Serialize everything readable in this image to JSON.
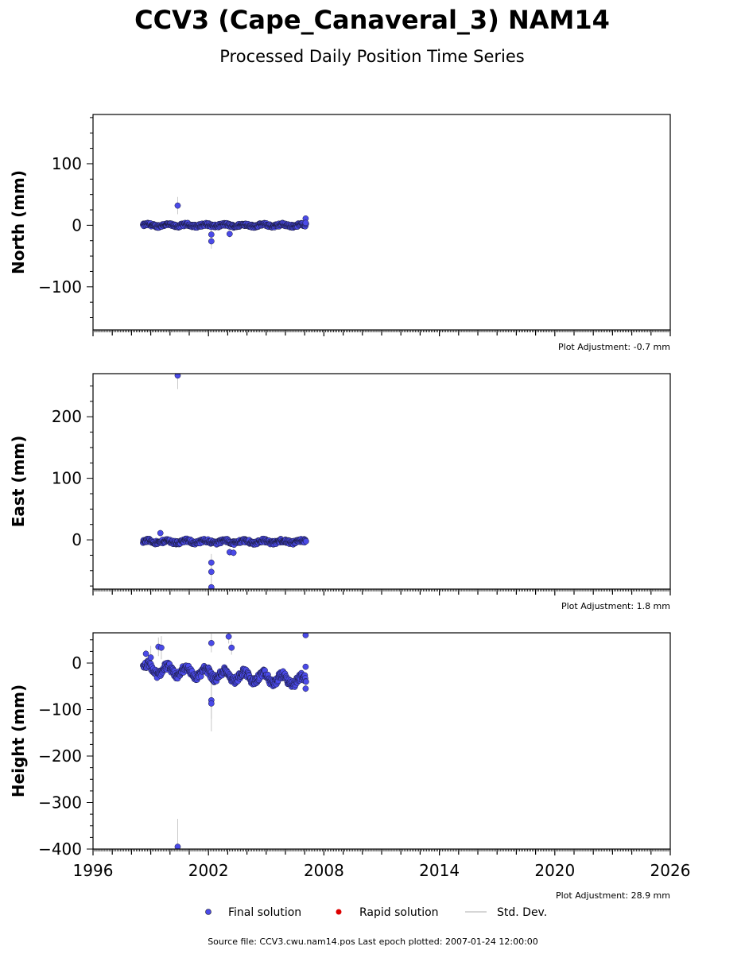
{
  "title": "CCV3 (Cape_Canaveral_3) NAM14",
  "subtitle": "Processed Daily Position Time Series",
  "source_line": "Source file: CCV3.cwu.nam14.pos  Last epoch plotted: 2007-01-24 12:00:00",
  "legend": {
    "final": "Final solution",
    "rapid": "Rapid solution",
    "std": "Std. Dev."
  },
  "colors": {
    "final": "#4a4ae8",
    "rapid": "#dd0000",
    "std": "#c8c8c8"
  },
  "chart_data": [
    {
      "type": "scatter",
      "ylabel": "North (mm)",
      "adjustment": "Plot Adjustment: -0.7 mm",
      "xlim": [
        1996,
        2026
      ],
      "ylim": [
        -170,
        180
      ],
      "yticks": [
        -100,
        0,
        100
      ],
      "ytick_labels": [
        "−100",
        "0",
        "100"
      ],
      "band": {
        "start": 1998.6,
        "end": 2007.07,
        "center": 0,
        "amp": 2.5,
        "wiggle": 1.5
      },
      "outliers": [
        {
          "x": 2000.4,
          "y": 32,
          "err": 14
        },
        {
          "x": 2002.15,
          "y": -15,
          "err": 10
        },
        {
          "x": 2002.15,
          "y": -26,
          "err": 12
        },
        {
          "x": 2003.1,
          "y": -14,
          "err": 6
        },
        {
          "x": 2007.05,
          "y": 11,
          "err": 4
        },
        {
          "x": 2007.05,
          "y": 4,
          "err": 3
        }
      ]
    },
    {
      "type": "scatter",
      "ylabel": "East (mm)",
      "adjustment": "Plot Adjustment: 1.8 mm",
      "xlim": [
        1996,
        2026
      ],
      "ylim": [
        -80,
        270
      ],
      "yticks": [
        0,
        100,
        200
      ],
      "ytick_labels": [
        "0",
        "100",
        "200"
      ],
      "band": {
        "start": 1998.6,
        "end": 2007.07,
        "center": -3,
        "amp": 3,
        "wiggle": 2
      },
      "outliers": [
        {
          "x": 2000.4,
          "y": 267,
          "err": 22
        },
        {
          "x": 1999.5,
          "y": 11,
          "err": 5
        },
        {
          "x": 2002.15,
          "y": -37,
          "err": 14
        },
        {
          "x": 2002.15,
          "y": -52,
          "err": 14
        },
        {
          "x": 2002.15,
          "y": -77,
          "err": 12
        },
        {
          "x": 2003.1,
          "y": -20,
          "err": 6
        },
        {
          "x": 2003.3,
          "y": -21,
          "err": 6
        }
      ]
    },
    {
      "type": "scatter",
      "ylabel": "Height (mm)",
      "adjustment": "Plot Adjustment: 28.9 mm",
      "xlim": [
        1996,
        2026
      ],
      "ylim": [
        -400,
        65
      ],
      "yticks": [
        -400,
        -300,
        -200,
        -100,
        0
      ],
      "ytick_labels": [
        "−400",
        "−300",
        "−200",
        "−100",
        "0"
      ],
      "xticks": [
        1996,
        2002,
        2008,
        2014,
        2020,
        2026
      ],
      "xtick_labels": [
        "1996",
        "2002",
        "2008",
        "2014",
        "2020",
        "2026"
      ],
      "band": {
        "start": 1998.6,
        "end": 2007.07,
        "center": -12,
        "amp": 8,
        "wiggle": 10,
        "trend": -3.2
      },
      "outliers": [
        {
          "x": 2000.4,
          "y": -395,
          "err": 60
        },
        {
          "x": 1999.4,
          "y": 35,
          "err": 20
        },
        {
          "x": 1999.55,
          "y": 33,
          "err": 25
        },
        {
          "x": 1998.75,
          "y": 20,
          "err": 8
        },
        {
          "x": 1999.0,
          "y": 12,
          "err": 25
        },
        {
          "x": 2002.15,
          "y": 43,
          "err": 20
        },
        {
          "x": 2002.15,
          "y": -80,
          "err": 40
        },
        {
          "x": 2002.15,
          "y": -87,
          "err": 60
        },
        {
          "x": 2003.05,
          "y": 57,
          "err": 15
        },
        {
          "x": 2003.2,
          "y": 33,
          "err": 15
        },
        {
          "x": 2007.05,
          "y": 60,
          "err": 5
        },
        {
          "x": 2007.05,
          "y": -8,
          "err": 6
        },
        {
          "x": 2007.05,
          "y": -55,
          "err": 8
        }
      ]
    }
  ]
}
